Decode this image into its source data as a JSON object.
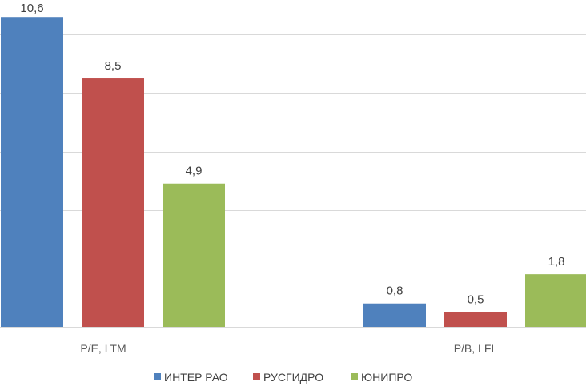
{
  "chart_data": {
    "type": "bar",
    "categories": [
      "P/E, LTM",
      "P/B, LFI"
    ],
    "series": [
      {
        "name": "ИНТЕР РАО",
        "color": "#4F81BD",
        "values": [
          10.6,
          0.8
        ],
        "labels": [
          "10,6",
          "0,8"
        ]
      },
      {
        "name": "РУСГИДРО",
        "color": "#C0504D",
        "values": [
          8.5,
          0.5
        ],
        "labels": [
          "8,5",
          "0,5"
        ]
      },
      {
        "name": "ЮНИПРО",
        "color": "#9BBB59",
        "values": [
          4.9,
          1.8
        ],
        "labels": [
          "4,9",
          "1,8"
        ]
      }
    ],
    "ylim": [
      0,
      12
    ],
    "grid": true,
    "legend_position": "bottom",
    "title": "",
    "xlabel": "",
    "ylabel": ""
  }
}
